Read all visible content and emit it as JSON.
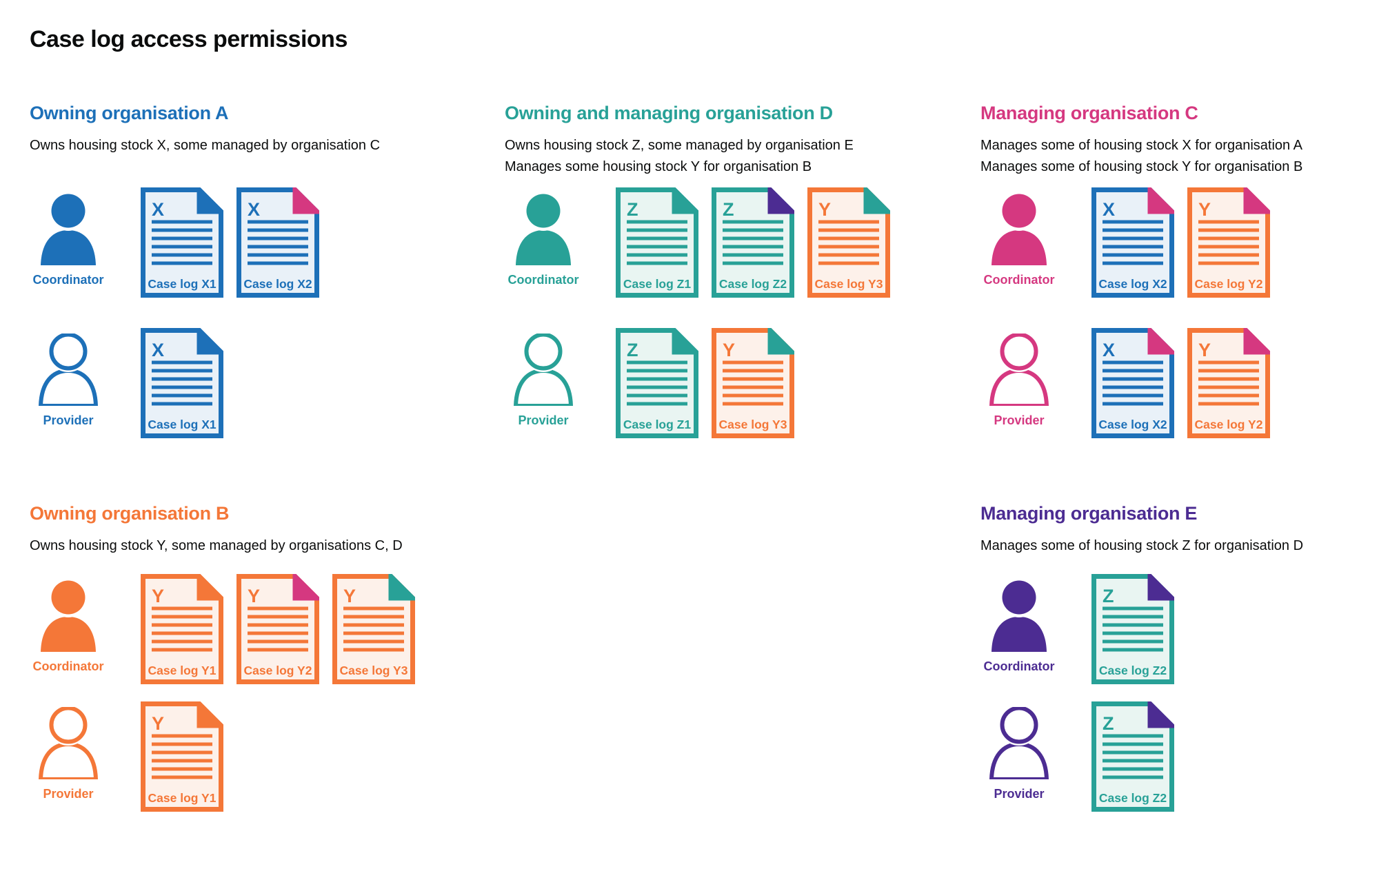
{
  "page_title": "Case log access permissions",
  "colors": {
    "blue": "#1d70b8",
    "teal": "#28a197",
    "pink": "#d53880",
    "orange": "#f47738",
    "purple": "#4c2c92",
    "black": "#0b0c0c",
    "blue_light": "#e9f1f8",
    "teal_light": "#e9f5f2",
    "orange_light": "#fdf1ea"
  },
  "sections": [
    {
      "id": "org-a",
      "title": "Owning organisation A",
      "color": "blue",
      "description": [
        "Owns housing stock X, some managed by organisation C"
      ],
      "rows": [
        {
          "role": "Coordinator",
          "person_style": "filled",
          "docs": [
            {
              "letter": "X",
              "label": "Case log X1",
              "doc_color": "blue",
              "fold_color": "blue"
            },
            {
              "letter": "X",
              "label": "Case log X2",
              "doc_color": "blue",
              "fold_color": "pink"
            }
          ]
        },
        {
          "role": "Provider",
          "person_style": "outline",
          "docs": [
            {
              "letter": "X",
              "label": "Case log X1",
              "doc_color": "blue",
              "fold_color": "blue"
            }
          ]
        }
      ]
    },
    {
      "id": "org-d",
      "title": "Owning and managing organisation D",
      "color": "teal",
      "description": [
        "Owns housing stock Z, some managed by organisation E",
        "Manages some housing stock Y for organisation B"
      ],
      "rows": [
        {
          "role": "Coordinator",
          "person_style": "filled",
          "docs": [
            {
              "letter": "Z",
              "label": "Case log Z1",
              "doc_color": "teal",
              "fold_color": "teal"
            },
            {
              "letter": "Z",
              "label": "Case log Z2",
              "doc_color": "teal",
              "fold_color": "purple"
            },
            {
              "letter": "Y",
              "label": "Case log Y3",
              "doc_color": "orange",
              "fold_color": "teal"
            }
          ]
        },
        {
          "role": "Provider",
          "person_style": "outline",
          "docs": [
            {
              "letter": "Z",
              "label": "Case log Z1",
              "doc_color": "teal",
              "fold_color": "teal"
            },
            {
              "letter": "Y",
              "label": "Case log Y3",
              "doc_color": "orange",
              "fold_color": "teal"
            }
          ]
        }
      ]
    },
    {
      "id": "org-c",
      "title": "Managing organisation C",
      "color": "pink",
      "description": [
        "Manages some of housing stock X for organisation A",
        "Manages some of housing stock Y for organisation B"
      ],
      "rows": [
        {
          "role": "Coordinator",
          "person_style": "filled",
          "docs": [
            {
              "letter": "X",
              "label": "Case log X2",
              "doc_color": "blue",
              "fold_color": "pink"
            },
            {
              "letter": "Y",
              "label": "Case log Y2",
              "doc_color": "orange",
              "fold_color": "pink"
            }
          ]
        },
        {
          "role": "Provider",
          "person_style": "outline",
          "docs": [
            {
              "letter": "X",
              "label": "Case log X2",
              "doc_color": "blue",
              "fold_color": "pink"
            },
            {
              "letter": "Y",
              "label": "Case log Y2",
              "doc_color": "orange",
              "fold_color": "pink"
            }
          ]
        }
      ]
    },
    {
      "id": "org-b",
      "title": "Owning organisation B",
      "color": "orange",
      "description": [
        "Owns housing stock Y, some managed by organisations C, D"
      ],
      "rows": [
        {
          "role": "Coordinator",
          "person_style": "filled",
          "docs": [
            {
              "letter": "Y",
              "label": "Case log Y1",
              "doc_color": "orange",
              "fold_color": "orange"
            },
            {
              "letter": "Y",
              "label": "Case log Y2",
              "doc_color": "orange",
              "fold_color": "pink"
            },
            {
              "letter": "Y",
              "label": "Case log Y3",
              "doc_color": "orange",
              "fold_color": "teal"
            }
          ]
        },
        {
          "role": "Provider",
          "person_style": "outline",
          "docs": [
            {
              "letter": "Y",
              "label": "Case log Y1",
              "doc_color": "orange",
              "fold_color": "orange"
            }
          ]
        }
      ]
    },
    {
      "id": "org-e",
      "title": "Managing organisation E",
      "color": "purple",
      "description": [
        "Manages some of housing stock Z for organisation D"
      ],
      "rows": [
        {
          "role": "Coordinator",
          "person_style": "filled",
          "docs": [
            {
              "letter": "Z",
              "label": "Case log Z2",
              "doc_color": "teal",
              "fold_color": "purple"
            }
          ]
        },
        {
          "role": "Provider",
          "person_style": "outline",
          "docs": [
            {
              "letter": "Z",
              "label": "Case log Z2",
              "doc_color": "teal",
              "fold_color": "purple"
            }
          ]
        }
      ]
    }
  ]
}
